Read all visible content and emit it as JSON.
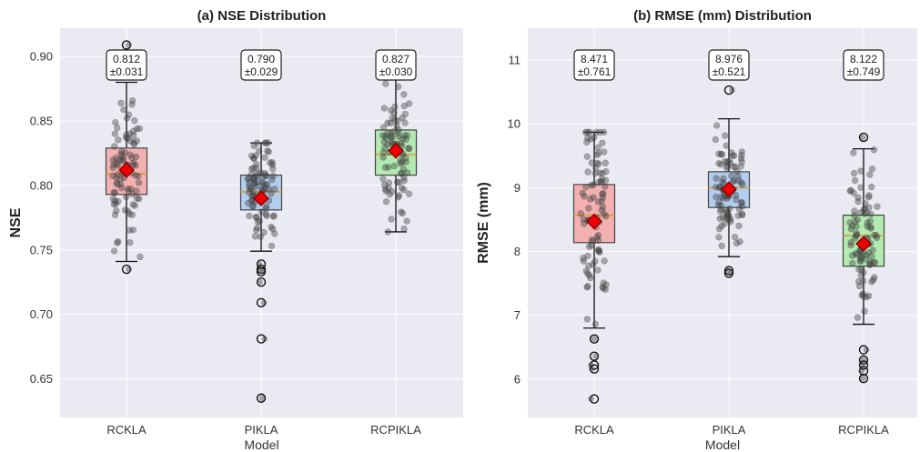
{
  "chart_data": [
    {
      "type": "box",
      "title": "(a) NSE Distribution",
      "xlabel": "Model",
      "ylabel": "NSE",
      "ylim": [
        0.62,
        0.922
      ],
      "yticks": [
        0.65,
        0.7,
        0.75,
        0.8,
        0.85,
        0.9
      ],
      "ytick_labels": [
        "0.65",
        "0.70",
        "0.75",
        "0.80",
        "0.85",
        "0.90"
      ],
      "categories": [
        "RCKLA",
        "PIKLA",
        "RCPIKLA"
      ],
      "colors": [
        "#f4a6a6",
        "#a9c8ef",
        "#a8eaa6"
      ],
      "grid": true,
      "series": [
        {
          "q1": 0.793,
          "median": 0.809,
          "q3": 0.829,
          "whisker_low": 0.741,
          "whisker_high": 0.88,
          "mean": 0.812,
          "outliers": [
            0.735,
            0.909
          ],
          "label": "0.812\n±0.031"
        },
        {
          "q1": 0.781,
          "median": 0.795,
          "q3": 0.808,
          "whisker_low": 0.749,
          "whisker_high": 0.833,
          "mean": 0.79,
          "outliers": [
            0.739,
            0.735,
            0.733,
            0.725,
            0.709,
            0.681,
            0.635
          ],
          "label": "0.790\n±0.029"
        },
        {
          "q1": 0.808,
          "median": 0.824,
          "q3": 0.843,
          "whisker_low": 0.764,
          "whisker_high": 0.888,
          "mean": 0.827,
          "outliers": [],
          "label": "0.827\n±0.030"
        }
      ]
    },
    {
      "type": "box",
      "title": "(b) RMSE (mm) Distribution",
      "xlabel": "Model",
      "ylabel": "RMSE (mm)",
      "ylim": [
        5.4,
        11.5
      ],
      "yticks": [
        6,
        7,
        8,
        9,
        10,
        11
      ],
      "ytick_labels": [
        "6",
        "7",
        "8",
        "9",
        "10",
        "11"
      ],
      "categories": [
        "RCKLA",
        "PIKLA",
        "RCPIKLA"
      ],
      "colors": [
        "#f4a6a6",
        "#a9c8ef",
        "#a8eaa6"
      ],
      "grid": true,
      "series": [
        {
          "q1": 8.14,
          "median": 8.57,
          "q3": 9.05,
          "whisker_low": 6.8,
          "whisker_high": 9.87,
          "mean": 8.471,
          "outliers": [
            6.63,
            6.36,
            6.22,
            6.16,
            5.69
          ],
          "label": "8.471\n±0.761"
        },
        {
          "q1": 8.69,
          "median": 9.0,
          "q3": 9.25,
          "whisker_low": 7.92,
          "whisker_high": 10.08,
          "mean": 8.976,
          "outliers": [
            10.53,
            7.7,
            7.66
          ],
          "label": "8.976\n±0.521"
        },
        {
          "q1": 7.77,
          "median": 8.25,
          "q3": 8.57,
          "whisker_low": 6.86,
          "whisker_high": 9.61,
          "mean": 8.122,
          "outliers": [
            9.79,
            6.46,
            6.3,
            6.22,
            6.13,
            6.01
          ],
          "label": "8.122\n±0.749"
        }
      ]
    }
  ]
}
